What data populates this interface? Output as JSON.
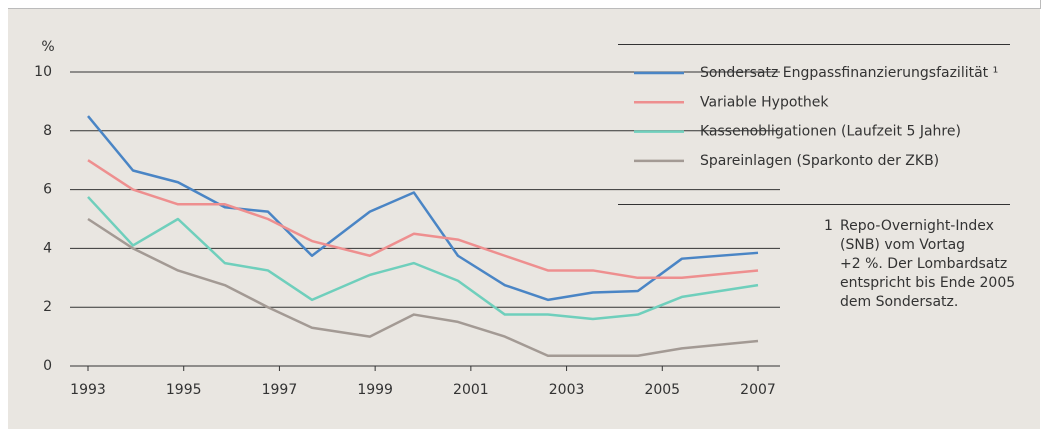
{
  "chart_data": {
    "type": "line",
    "y_label": "%",
    "x": [
      1993,
      1993.94,
      1994.88,
      1995.86,
      1996.76,
      1997.68,
      1998.89,
      1999.81,
      2000.73,
      2001.71,
      2002.61,
      2003.55,
      2004.49,
      2005.41,
      2007
    ],
    "series": [
      {
        "name": "Sondersatz Engpassfinanzierungsfazilität ¹",
        "color": "#4a85c5",
        "values": [
          8.5,
          6.65,
          6.25,
          5.4,
          5.25,
          3.75,
          5.25,
          5.9,
          3.75,
          2.75,
          2.25,
          2.5,
          2.55,
          3.65,
          3.85
        ]
      },
      {
        "name": "Variable Hypothek",
        "color": "#ee8f8f",
        "values": [
          7,
          6,
          5.5,
          5.5,
          5,
          4.25,
          3.75,
          4.5,
          4.3,
          3.75,
          3.25,
          3.25,
          3,
          3,
          3.25
        ]
      },
      {
        "name": "Kassenobligationen (Laufzeit 5 Jahre)",
        "color": "#6fcfbc",
        "values": [
          5.75,
          4.1,
          5,
          3.5,
          3.25,
          2.25,
          3.1,
          3.5,
          2.9,
          1.75,
          1.75,
          1.6,
          1.75,
          2.35,
          2.75
        ]
      },
      {
        "name": "Spareinlagen (Sparkonto der ZKB)",
        "color": "#a39a94",
        "values": [
          5,
          4,
          3.25,
          2.75,
          2,
          1.3,
          1,
          1.75,
          1.5,
          1,
          0.35,
          0.35,
          0.35,
          0.6,
          0.85
        ]
      }
    ],
    "xlim": [
      1993,
      2007
    ],
    "xticks": [
      1993,
      1995,
      1997,
      1999,
      2001,
      2003,
      2005,
      2007
    ],
    "ylim": [
      0,
      10
    ],
    "yticks": [
      0,
      2,
      4,
      6,
      8,
      10
    ],
    "grid": true,
    "footnote": {
      "marker": "1",
      "lines": [
        "Repo-Overnight-Index",
        "(SNB) vom Vortag",
        "+2 %. Der Lombardsatz",
        "entspricht bis Ende 2005",
        "dem Sondersatz."
      ]
    }
  }
}
